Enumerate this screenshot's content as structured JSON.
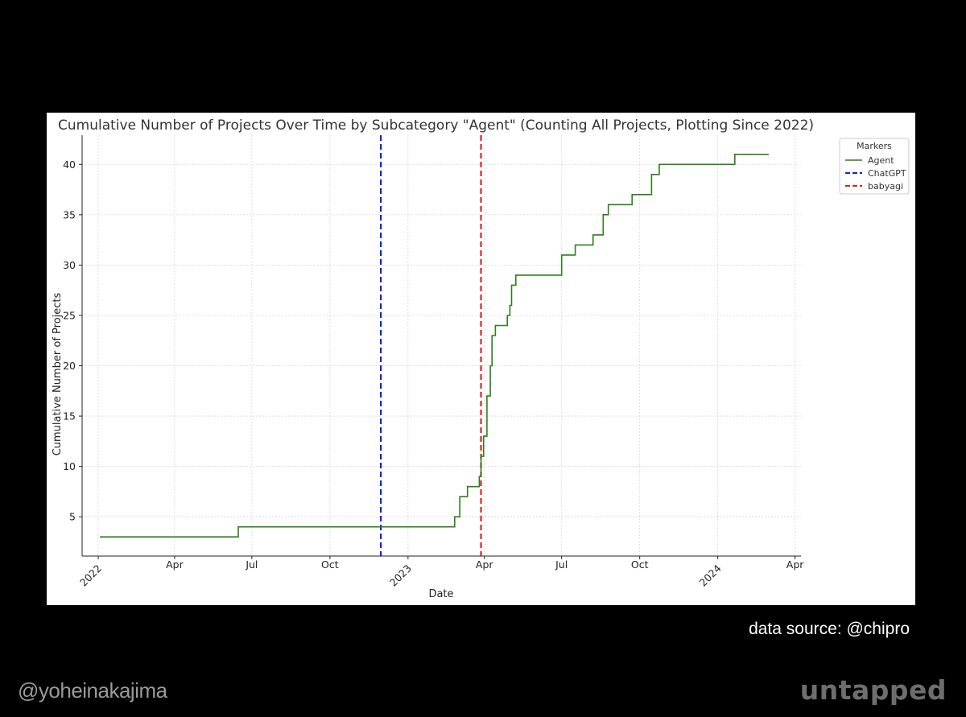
{
  "source_note": "data source: @chipro",
  "author": "@yoheinakajima",
  "brand": "untapped",
  "chart_data": {
    "type": "line",
    "title": "Cumulative Number of Projects Over Time by Subcategory \"Agent\" (Counting All Projects, Plotting Since 2022)",
    "xlabel": "Date",
    "ylabel": "Cumulative Number of Projects",
    "x_ticks": [
      {
        "date": "2022-01-01",
        "label": "2022",
        "rotated": true
      },
      {
        "date": "2022-04-01",
        "label": "Apr",
        "rotated": false
      },
      {
        "date": "2022-07-01",
        "label": "Jul",
        "rotated": false
      },
      {
        "date": "2022-10-01",
        "label": "Oct",
        "rotated": false
      },
      {
        "date": "2023-01-01",
        "label": "2023",
        "rotated": true
      },
      {
        "date": "2023-04-01",
        "label": "Apr",
        "rotated": false
      },
      {
        "date": "2023-07-01",
        "label": "Jul",
        "rotated": false
      },
      {
        "date": "2023-10-01",
        "label": "Oct",
        "rotated": false
      },
      {
        "date": "2024-01-01",
        "label": "2024",
        "rotated": true
      },
      {
        "date": "2024-04-01",
        "label": "Apr",
        "rotated": false
      }
    ],
    "y_ticks": [
      5,
      10,
      15,
      20,
      25,
      30,
      35,
      40
    ],
    "xlim": [
      "2021-12-13",
      "2024-04-08"
    ],
    "ylim": [
      1.1,
      42.9
    ],
    "grid": true,
    "legend": {
      "title": "Markers",
      "position": "upper right outside"
    },
    "series": [
      {
        "name": "Agent",
        "color": "#2e7d1e",
        "style": "step",
        "points": [
          [
            "2022-01-03",
            3
          ],
          [
            "2022-06-15",
            4
          ],
          [
            "2023-02-25",
            5
          ],
          [
            "2023-03-03",
            7
          ],
          [
            "2023-03-12",
            8
          ],
          [
            "2023-03-26",
            9
          ],
          [
            "2023-03-28",
            11
          ],
          [
            "2023-03-31",
            13
          ],
          [
            "2023-04-04",
            17
          ],
          [
            "2023-04-08",
            20
          ],
          [
            "2023-04-10",
            23
          ],
          [
            "2023-04-14",
            24
          ],
          [
            "2023-04-28",
            25
          ],
          [
            "2023-05-01",
            26
          ],
          [
            "2023-05-03",
            28
          ],
          [
            "2023-05-08",
            29
          ],
          [
            "2023-07-01",
            31
          ],
          [
            "2023-07-17",
            32
          ],
          [
            "2023-08-07",
            33
          ],
          [
            "2023-08-19",
            35
          ],
          [
            "2023-08-25",
            36
          ],
          [
            "2023-09-22",
            37
          ],
          [
            "2023-10-15",
            39
          ],
          [
            "2023-10-24",
            40
          ],
          [
            "2024-01-21",
            41
          ],
          [
            "2024-03-01",
            41
          ]
        ]
      }
    ],
    "markers": [
      {
        "name": "ChatGPT",
        "date": "2022-11-30",
        "color": "#1428c8",
        "dash": "dashed"
      },
      {
        "name": "babyagi",
        "date": "2023-03-28",
        "color": "#d62728",
        "dash": "dashed"
      }
    ]
  }
}
